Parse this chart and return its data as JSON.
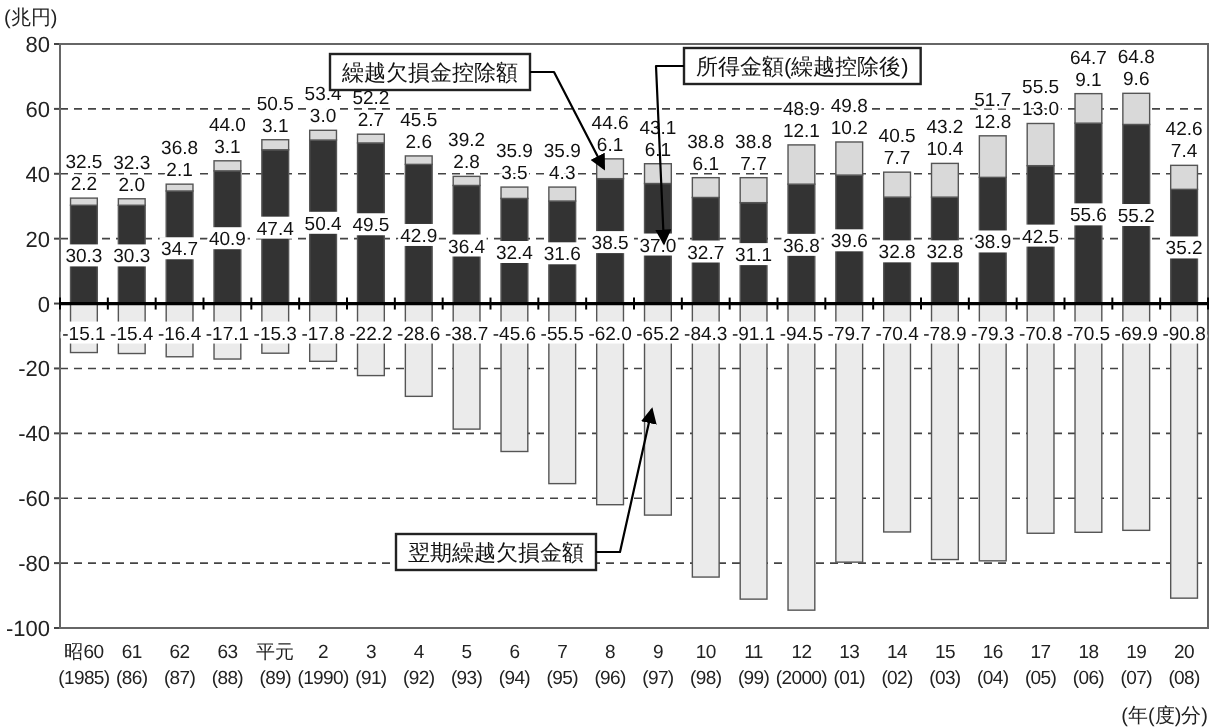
{
  "chart_data": {
    "type": "bar",
    "stacked": true,
    "grid": "y",
    "ylabel": "(兆円)",
    "xlabel": "(年(度)分)",
    "categories": [
      "昭60\n(1985)",
      "61\n(86)",
      "62\n(87)",
      "63\n(88)",
      "平元\n(89)",
      "2\n(1990)",
      "3\n(91)",
      "4\n(92)",
      "5\n(93)",
      "6\n(94)",
      "7\n(95)",
      "8\n(96)",
      "9\n(97)",
      "10\n(98)",
      "11\n(99)",
      "12\n(2000)",
      "13\n(01)",
      "14\n(02)",
      "15\n(03)",
      "16\n(04)",
      "17\n(05)",
      "18\n(06)",
      "19\n(07)",
      "20\n(08)"
    ],
    "series": [
      {
        "name": "所得金額(繰越控除後)",
        "color": "#333333",
        "values": [
          30.3,
          30.3,
          34.7,
          40.9,
          47.4,
          50.4,
          49.5,
          42.9,
          36.4,
          32.4,
          31.6,
          38.5,
          37.0,
          32.7,
          31.1,
          36.8,
          39.6,
          32.8,
          32.8,
          38.9,
          42.5,
          55.6,
          55.2,
          35.2
        ],
        "value_labels": [
          "30.3",
          "30.3",
          "34.7",
          "40.9",
          "47.4",
          "50.4",
          "49.5",
          "42.9",
          "36.4",
          "32.4",
          "31.6",
          "38.5",
          "37.0",
          "32.7",
          "31.1",
          "36.8",
          "39.6",
          "32.8",
          "32.8",
          "38.9",
          "42.5",
          "55.6",
          "55.2",
          "35.2"
        ]
      },
      {
        "name": "繰越欠損金控除額",
        "color": "#d9d9d9",
        "values": [
          2.2,
          2.0,
          2.1,
          3.1,
          3.1,
          3.0,
          2.7,
          2.6,
          2.8,
          3.5,
          4.3,
          6.1,
          6.1,
          6.1,
          7.7,
          12.1,
          10.2,
          7.7,
          10.4,
          12.8,
          13.0,
          9.1,
          9.6,
          7.4
        ],
        "value_labels": [
          "2.2",
          "2.0",
          "2.1",
          "3.1",
          "3.1",
          "3.0",
          "2.7",
          "2.6",
          "2.8",
          "3.5",
          "4.3",
          "6.1",
          "6.1",
          "6.1",
          "7.7",
          "12.1",
          "10.2",
          "7.7",
          "10.4",
          "12.8",
          "13.0",
          "9.1",
          "9.6",
          "7.4"
        ]
      },
      {
        "name": "翌期繰越欠損金額",
        "color": "#ebebeb",
        "values": [
          -15.1,
          -15.4,
          -16.4,
          -17.1,
          -15.3,
          -17.8,
          -22.2,
          -28.6,
          -38.7,
          -45.6,
          -55.5,
          -62.0,
          -65.2,
          -84.3,
          -91.1,
          -94.5,
          -79.7,
          -70.4,
          -78.9,
          -79.3,
          -70.8,
          -70.5,
          -69.9,
          -90.8
        ],
        "value_labels": [
          "-15.1",
          "-15.4",
          "-16.4",
          "-17.1",
          "-15.3",
          "-17.8",
          "-22.2",
          "-28.6",
          "-38.7",
          "-45.6",
          "-55.5",
          "-62.0",
          "-65.2",
          "-84.3",
          "-91.1",
          "-94.5",
          "-79.7",
          "-70.4",
          "-78.9",
          "-79.3",
          "-70.8",
          "-70.5",
          "-69.9",
          "-90.8"
        ]
      }
    ],
    "annotations": [
      {
        "text": "32.5",
        "x": "昭60\n(1985)",
        "y": 32.5
      },
      {
        "text": "32.3",
        "x": "61\n(86)",
        "y": 32.3
      },
      {
        "text": "36.8",
        "x": "62\n(87)",
        "y": 36.8
      },
      {
        "text": "44.0",
        "x": "63\n(88)",
        "y": 44.0
      },
      {
        "text": "50.5",
        "x": "平元\n(89)",
        "y": 50.5
      },
      {
        "text": "53.4",
        "x": "2\n(1990)",
        "y": 53.4
      },
      {
        "text": "52.2",
        "x": "3\n(91)",
        "y": 52.2
      },
      {
        "text": "45.5",
        "x": "4\n(92)",
        "y": 45.5
      },
      {
        "text": "39.2",
        "x": "5\n(93)",
        "y": 39.2
      },
      {
        "text": "35.9",
        "x": "6\n(94)",
        "y": 35.9
      },
      {
        "text": "35.9",
        "x": "7\n(95)",
        "y": 35.9
      },
      {
        "text": "44.6",
        "x": "8\n(96)",
        "y": 44.6
      },
      {
        "text": "43.1",
        "x": "9\n(97)",
        "y": 43.1
      },
      {
        "text": "38.8",
        "x": "10\n(98)",
        "y": 38.8
      },
      {
        "text": "38.8",
        "x": "11\n(99)",
        "y": 38.8
      },
      {
        "text": "48.9",
        "x": "12\n(2000)",
        "y": 48.9
      },
      {
        "text": "49.8",
        "x": "13\n(01)",
        "y": 49.8
      },
      {
        "text": "40.5",
        "x": "14\n(02)",
        "y": 40.5
      },
      {
        "text": "43.2",
        "x": "15\n(03)",
        "y": 43.2
      },
      {
        "text": "51.7",
        "x": "16\n(04)",
        "y": 51.7
      },
      {
        "text": "55.5",
        "x": "17\n(05)",
        "y": 55.5
      },
      {
        "text": "64.7",
        "x": "18\n(06)",
        "y": 64.7
      },
      {
        "text": "64.8",
        "x": "19\n(07)",
        "y": 64.8
      },
      {
        "text": "42.6",
        "x": "20\n(08)",
        "y": 42.6
      }
    ],
    "ylim": [
      -100,
      80
    ],
    "yticks": [
      -100,
      -80,
      -60,
      -40,
      -20,
      0,
      20,
      40,
      60,
      80
    ]
  }
}
